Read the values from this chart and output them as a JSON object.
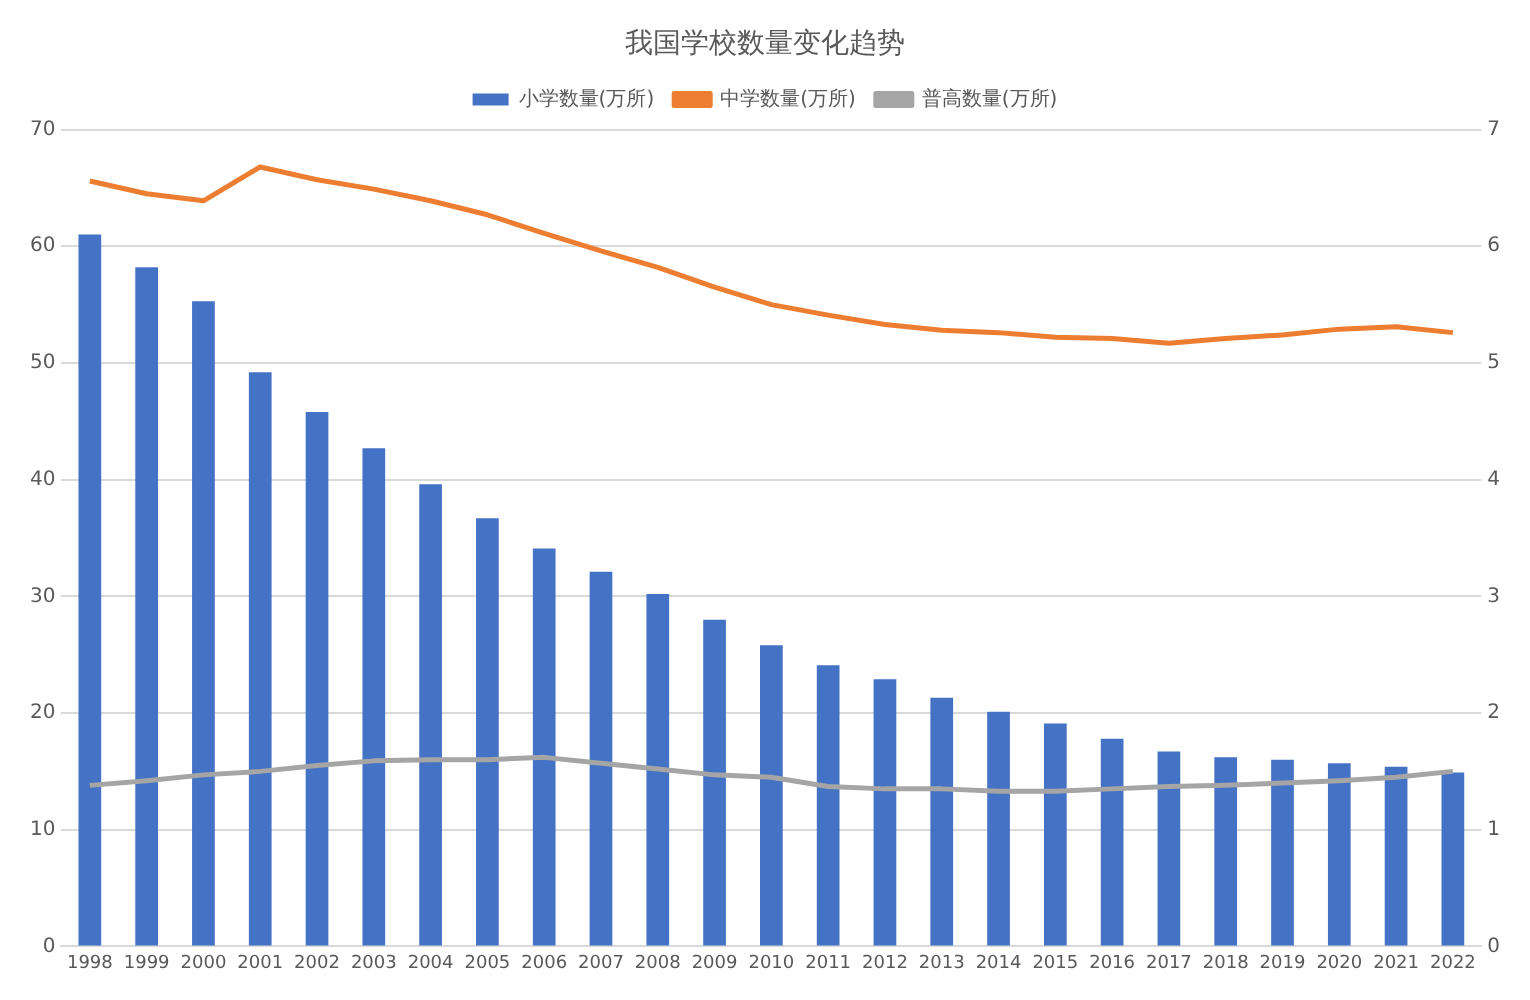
{
  "chart_data": {
    "type": "bar",
    "title": "我国学校数量变化趋势",
    "categories": [
      "1998",
      "1999",
      "2000",
      "2001",
      "2002",
      "2003",
      "2004",
      "2005",
      "2006",
      "2007",
      "2008",
      "2009",
      "2010",
      "2011",
      "2012",
      "2013",
      "2014",
      "2015",
      "2016",
      "2017",
      "2018",
      "2019",
      "2020",
      "2021",
      "2022"
    ],
    "series": [
      {
        "name": "小学数量(万所)",
        "color": "#4472c4",
        "values": [
          61.0,
          58.2,
          55.3,
          49.2,
          45.8,
          42.7,
          39.6,
          36.7,
          34.1,
          32.1,
          30.2,
          28.0,
          25.8,
          24.1,
          22.9,
          21.3,
          20.1,
          19.1,
          17.8,
          16.7,
          16.2,
          16.0,
          15.7,
          15.4,
          14.9
        ]
      },
      {
        "name": "中学数量(万所)",
        "type": "line",
        "axis": "y2",
        "color": "#ed7d31",
        "values": [
          6.56,
          6.45,
          6.39,
          6.68,
          6.57,
          6.49,
          6.39,
          6.27,
          6.11,
          5.96,
          5.82,
          5.65,
          5.5,
          5.41,
          5.33,
          5.28,
          5.26,
          5.22,
          5.21,
          5.17,
          5.21,
          5.24,
          5.29,
          5.31,
          5.26
        ]
      },
      {
        "name": "普高数量(万所)",
        "type": "line",
        "axis": "y2",
        "color": "#a5a5a5",
        "values": [
          1.38,
          1.42,
          1.47,
          1.5,
          1.55,
          1.59,
          1.6,
          1.6,
          1.62,
          1.57,
          1.52,
          1.47,
          1.45,
          1.37,
          1.35,
          1.35,
          1.33,
          1.33,
          1.35,
          1.37,
          1.38,
          1.4,
          1.42,
          1.45,
          1.5
        ]
      }
    ],
    "ylim": [
      0,
      70
    ],
    "yticks": [
      0,
      10,
      20,
      30,
      40,
      50,
      60,
      70
    ],
    "y2lim": [
      0,
      7
    ],
    "y2ticks": [
      0,
      1,
      2,
      3,
      4,
      5,
      6,
      7
    ],
    "grid": "y",
    "legend": "top",
    "marker": "none",
    "line_style": "solid"
  }
}
